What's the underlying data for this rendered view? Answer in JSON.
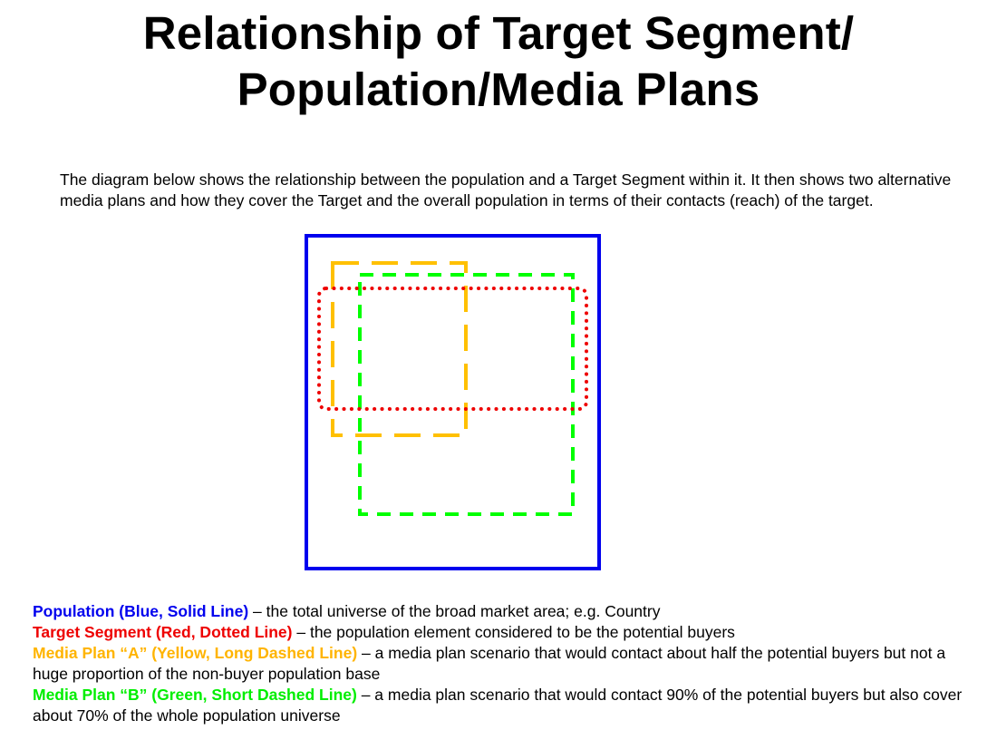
{
  "title": {
    "line1": "Relationship of Target Segment/",
    "line2": "Population/Media Plans"
  },
  "intro": "The diagram below shows the relationship between the population and a Target Segment within it.  It then shows two alternative media plans and how they cover the Target and the overall population in terms of their contacts (reach) of the target.",
  "legend": {
    "items": [
      {
        "name": "Population (Blue, Solid Line)",
        "desc": " – the total universe of the broad market area; e.g. Country",
        "color": "#0000ee"
      },
      {
        "name": "Target Segment (Red, Dotted Line)",
        "desc": " – the population element considered to be the potential buyers",
        "color": "#ee0000"
      },
      {
        "name": "Media Plan “A” (Yellow, Long Dashed Line)",
        "desc": " – a media plan scenario that would contact about half the potential buyers but not a huge proportion of the non-buyer population base",
        "color": "#ffb400"
      },
      {
        "name": "Media Plan “B” (Green, Short Dashed Line)",
        "desc": " – a media plan scenario that would contact 90% of the potential buyers but also cover about 70% of the whole population universe",
        "color": "#00ee00"
      }
    ]
  },
  "diagram_colors": {
    "population": "#0000ee",
    "target": "#ee0000",
    "plan_a": "#ffc000",
    "plan_b": "#00ff00"
  }
}
